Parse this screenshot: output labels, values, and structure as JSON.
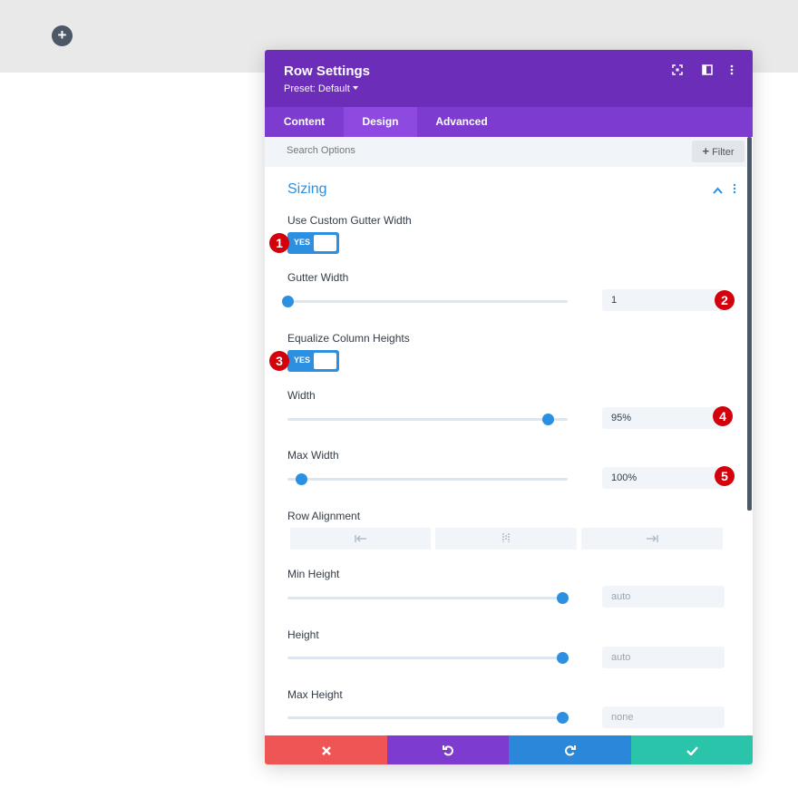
{
  "canvas": {
    "add_icon": "plus-icon"
  },
  "modal": {
    "title": "Row Settings",
    "preset": "Preset: Default",
    "header_icons": [
      "fullscreen-icon",
      "sidebar-layout-icon",
      "kebab-menu-icon"
    ]
  },
  "tabs": [
    {
      "label": "Content",
      "active": false
    },
    {
      "label": "Design",
      "active": true
    },
    {
      "label": "Advanced",
      "active": false
    }
  ],
  "search": {
    "placeholder": "Search Options",
    "filter_label": "Filter"
  },
  "section": {
    "title": "Sizing"
  },
  "settings": {
    "use_custom_gutter": {
      "label": "Use Custom Gutter Width",
      "toggle": "YES",
      "badge": "1"
    },
    "gutter_width": {
      "label": "Gutter Width",
      "value": "1",
      "badge": "2",
      "level": 0
    },
    "equalize_heights": {
      "label": "Equalize Column Heights",
      "toggle": "YES",
      "badge": "3"
    },
    "width": {
      "label": "Width",
      "value": "95%",
      "badge": "4",
      "level": 0.93
    },
    "max_width": {
      "label": "Max Width",
      "value": "100%",
      "badge": "5",
      "level": 0.05
    },
    "row_alignment": {
      "label": "Row Alignment",
      "options": [
        "align-left-icon",
        "align-center-icon",
        "align-right-icon"
      ]
    },
    "min_height": {
      "label": "Min Height",
      "value": "auto",
      "level": 0.98
    },
    "height": {
      "label": "Height",
      "value": "auto",
      "level": 0.98
    },
    "max_height": {
      "label": "Max Height",
      "value": "none",
      "level": 0.98
    }
  },
  "footer": {
    "cancel_icon": "close-icon",
    "undo_icon": "undo-icon",
    "redo_icon": "redo-icon",
    "save_icon": "checkmark-icon"
  },
  "colors": {
    "header": "#6c2eb9",
    "tabs": "#7d3bcf",
    "accent": "#2c8fe0",
    "badge": "#d2010c",
    "cancel": "#ef5555",
    "undo": "#7d3bcf",
    "redo": "#2b87da",
    "save": "#29c4a9"
  }
}
